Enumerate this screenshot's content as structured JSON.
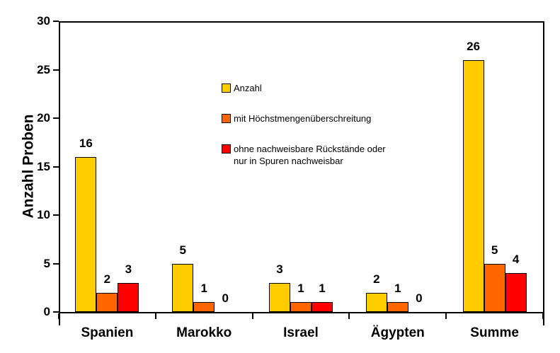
{
  "chart_data": {
    "type": "bar",
    "ylabel": "Anzahl Proben",
    "categories": [
      "Spanien",
      "Marokko",
      "Israel",
      "Ägypten",
      "Summe"
    ],
    "series": [
      {
        "name": "Anzahl",
        "color": "#FFCC00",
        "values": [
          16,
          5,
          3,
          2,
          26
        ]
      },
      {
        "name": "mit Höchstmengenüberschreitung",
        "color": "#FF6600",
        "values": [
          2,
          1,
          1,
          1,
          5
        ]
      },
      {
        "name": "ohne nachweisbare Rückstände oder nur in Spuren nachweisbar",
        "color": "#FF0000",
        "values": [
          3,
          0,
          1,
          0,
          4
        ]
      }
    ],
    "ylim": [
      0,
      30
    ],
    "yticks": [
      0,
      5,
      10,
      15,
      20,
      25,
      30
    ],
    "grid": false,
    "bar_value_labels": true,
    "legend_position": "inside-upper-middle",
    "legend_items": [
      {
        "color": "#FFCC00",
        "lines": [
          "Anzahl"
        ]
      },
      {
        "color": "#FF6600",
        "lines": [
          "mit Höchstmengenüberschreitung"
        ]
      },
      {
        "color": "#FF0000",
        "lines": [
          "ohne nachweisbare Rückstände oder",
          "nur in Spuren nachweisbar"
        ]
      }
    ],
    "axis_color": "#000000",
    "text_color": "#000000",
    "background_color": "#FFFFFF"
  }
}
